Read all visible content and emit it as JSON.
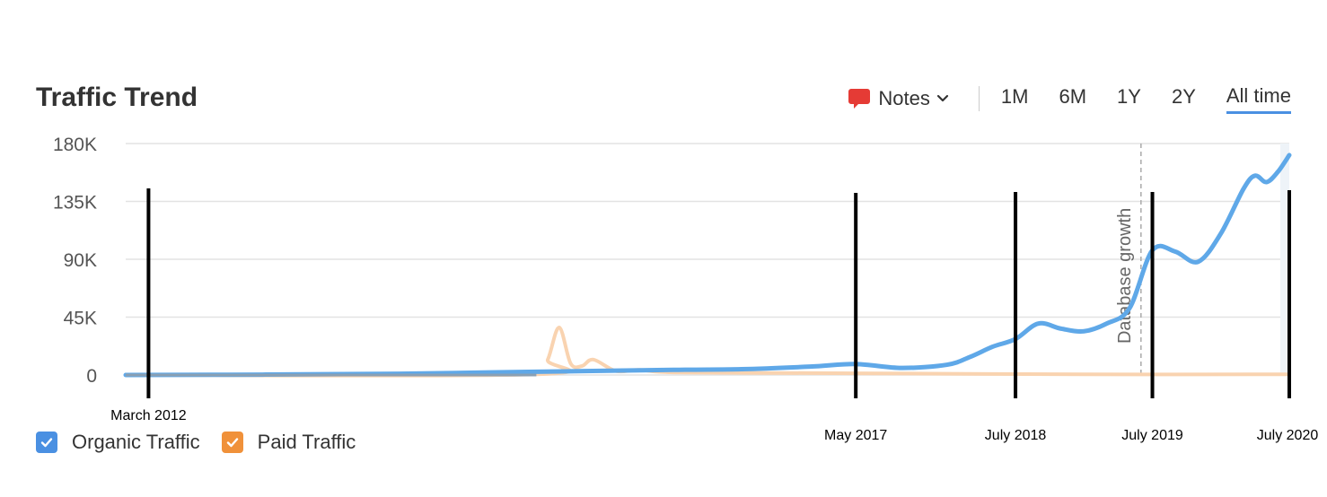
{
  "title": "Traffic Trend",
  "toolbar": {
    "notes_label": "Notes",
    "ranges": [
      "1M",
      "6M",
      "1Y",
      "2Y",
      "All time"
    ],
    "active_range": "All time"
  },
  "icons": {
    "notes": "speech-bubble-icon",
    "notes_dropdown": "chevron-down-icon",
    "checkbox": "checkmark-icon"
  },
  "colors": {
    "organic": "#5fa8e8",
    "paid": "#f0a05a",
    "paid_faded": "#f9d3b0",
    "grid": "#e3e3e3",
    "annotation_line": "#000000",
    "accent": "#4a90e2"
  },
  "legend": [
    {
      "label": "Organic Traffic",
      "color": "#4a90e2",
      "checked": true
    },
    {
      "label": "Paid Traffic",
      "color": "#f0913a",
      "checked": true
    }
  ],
  "chart_data": {
    "type": "line",
    "x_range": [
      "2012-01",
      "2020-07"
    ],
    "ylim": [
      0,
      180000
    ],
    "y_ticks": [
      0,
      45000,
      90000,
      135000,
      180000
    ],
    "y_tick_labels": [
      "0",
      "45K",
      "90K",
      "135K",
      "180K"
    ],
    "grid": true,
    "legend_position": "bottom-left",
    "series": [
      {
        "name": "Organic Traffic",
        "x": [
          "2012-01",
          "2013-01",
          "2014-01",
          "2015-01",
          "2016-01",
          "2016-07",
          "2017-01",
          "2017-05",
          "2017-09",
          "2018-01",
          "2018-03",
          "2018-05",
          "2018-07",
          "2018-09",
          "2018-11",
          "2019-01",
          "2019-03",
          "2019-05",
          "2019-07",
          "2019-09",
          "2019-11",
          "2020-01",
          "2020-03",
          "2020-04",
          "2020-05",
          "2020-06",
          "2020-07"
        ],
        "values": [
          0,
          300,
          1000,
          2500,
          4000,
          4500,
          6500,
          8500,
          5500,
          8000,
          14000,
          22000,
          28000,
          40000,
          36000,
          34000,
          40000,
          52000,
          97000,
          96000,
          88000,
          110000,
          145000,
          155000,
          150000,
          158000,
          171000
        ]
      },
      {
        "name": "Paid Traffic",
        "x": [
          "2012-01",
          "2015-01",
          "2015-02",
          "2015-03",
          "2015-04",
          "2015-05",
          "2015-06",
          "2015-08",
          "2015-10",
          "2016-01",
          "2017-01",
          "2018-01",
          "2019-01",
          "2020-07"
        ],
        "values": [
          0,
          500,
          12000,
          37000,
          9000,
          7000,
          12000,
          3000,
          4000,
          2000,
          1500,
          1000,
          500,
          500
        ]
      }
    ],
    "annotations": [
      {
        "type": "vline",
        "x": "2012-03",
        "label": "March 2012"
      },
      {
        "type": "vline",
        "x": "2017-05",
        "label": "May 2017"
      },
      {
        "type": "vline",
        "x": "2018-07",
        "label": "July 2018"
      },
      {
        "type": "vline",
        "x": "2019-07",
        "label": "July 2019"
      },
      {
        "type": "vline",
        "x": "2020-07",
        "label": "July 2020"
      },
      {
        "type": "dashed_vline",
        "x": "2019-06",
        "label": "Database growth"
      }
    ]
  }
}
